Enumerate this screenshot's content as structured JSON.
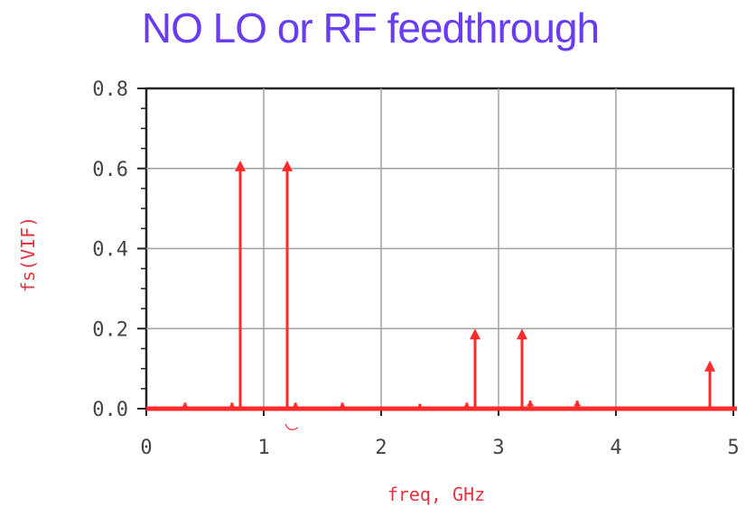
{
  "chart_data": {
    "type": "bar",
    "title": "NO LO or RF feedthrough",
    "xlabel": "freq, GHz",
    "ylabel": "fs(VIF)",
    "xlim": [
      0,
      5
    ],
    "ylim": [
      0,
      0.8
    ],
    "xticks": [
      "0",
      "1",
      "2",
      "3",
      "4",
      "5"
    ],
    "yticks": [
      "0.0",
      "0.2",
      "0.4",
      "0.6",
      "0.8"
    ],
    "grid": true,
    "series": [
      {
        "x": [
          0.8,
          1.2,
          2.8,
          3.2,
          4.8,
          0.33,
          0.73,
          1.27,
          1.67,
          2.33,
          2.73,
          3.27,
          3.67
        ],
        "values": [
          0.62,
          0.62,
          0.2,
          0.2,
          0.12,
          0.015,
          0.015,
          0.015,
          0.015,
          0.012,
          0.015,
          0.02,
          0.02
        ]
      }
    ],
    "colors": {
      "series": "#ff2a2a",
      "grid": "#a0a0a0",
      "frame": "#222222",
      "title": "#6a3cf0"
    }
  }
}
